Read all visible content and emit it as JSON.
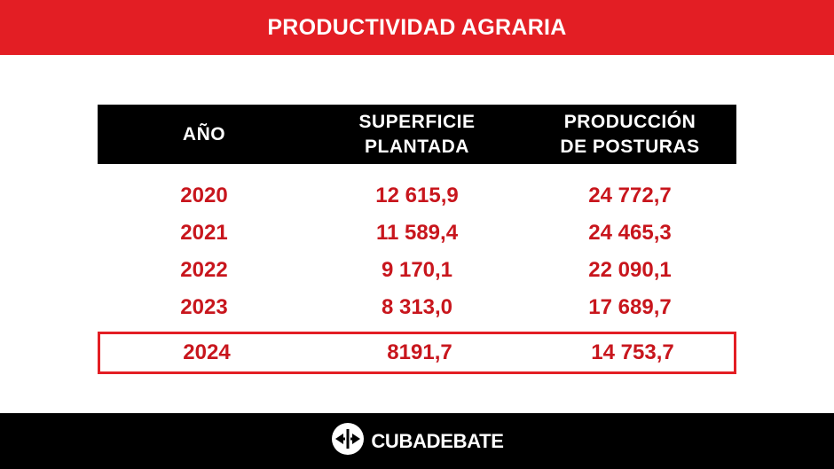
{
  "header": {
    "title": "PRODUCTIVIDAD AGRARIA"
  },
  "table": {
    "columns": [
      "AÑO",
      "SUPERFICIE\nPLANTADA",
      "PRODUCCIÓN\nDE POSTURAS"
    ],
    "rows": [
      [
        "2020",
        "12 615,9",
        "24 772,7"
      ],
      [
        "2021",
        "11 589,4",
        "24 465,3"
      ],
      [
        "2022",
        "9 170,1",
        "22 090,1"
      ],
      [
        "2023",
        "8 313,0",
        "17 689,7"
      ],
      [
        "2024",
        "8191,7",
        "14 753,7"
      ]
    ],
    "highlighted_row": "2024"
  },
  "footer": {
    "brand": "CUBADEBATE"
  },
  "colors": {
    "accent_red": "#e31e24",
    "text_red": "#c8161d",
    "black": "#000000",
    "white": "#ffffff"
  },
  "icons": {
    "logo": "cubadebate-arrows-circle-icon"
  },
  "chart_data": {
    "type": "table",
    "title": "PRODUCTIVIDAD AGRARIA",
    "columns": [
      "AÑO",
      "SUPERFICIE PLANTADA",
      "PRODUCCIÓN DE POSTURAS"
    ],
    "rows": [
      {
        "year": "2020",
        "superficie_plantada": 12615.9,
        "produccion_de_posturas": 24772.7
      },
      {
        "year": "2021",
        "superficie_plantada": 11589.4,
        "produccion_de_posturas": 24465.3
      },
      {
        "year": "2022",
        "superficie_plantada": 9170.1,
        "produccion_de_posturas": 22090.1
      },
      {
        "year": "2023",
        "superficie_plantada": 8313.0,
        "produccion_de_posturas": 17689.7
      },
      {
        "year": "2024",
        "superficie_plantada": 8191.7,
        "produccion_de_posturas": 14753.7
      }
    ]
  }
}
